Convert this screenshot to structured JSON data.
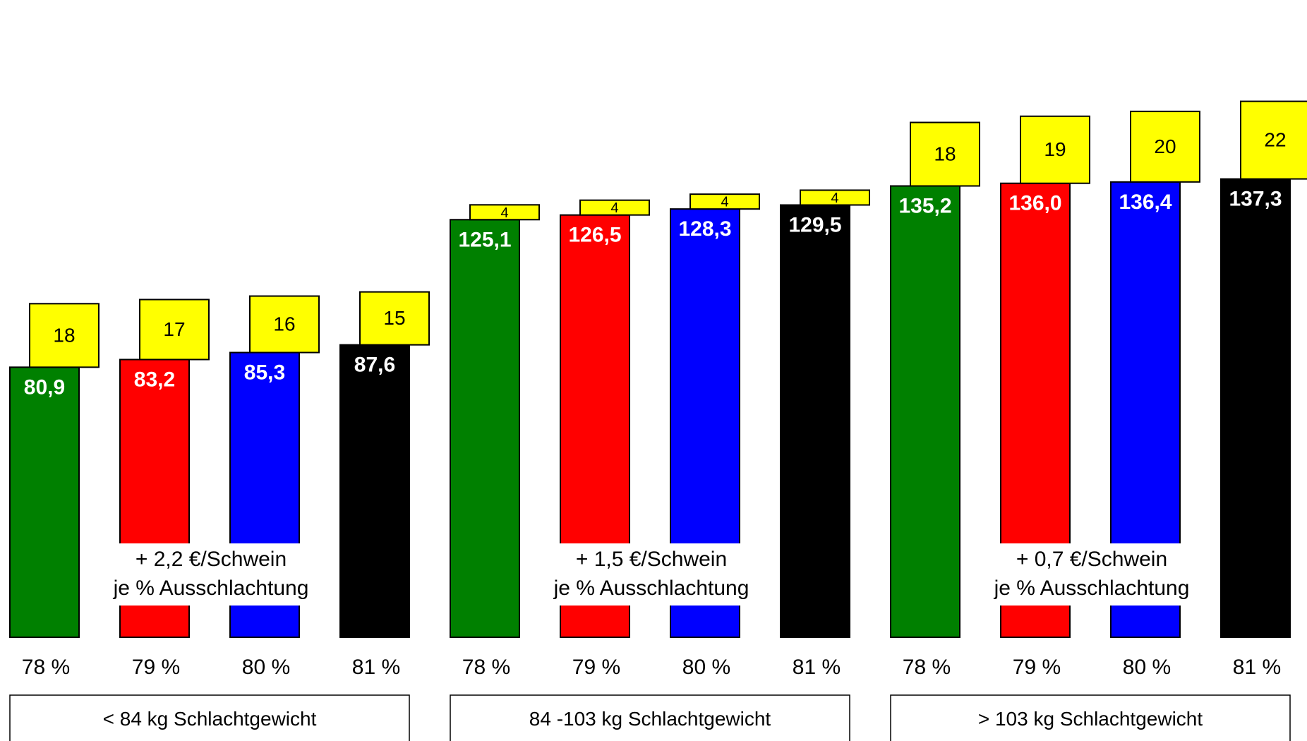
{
  "chart_data": {
    "type": "bar",
    "yellow_color": "#FFFF00",
    "group_colors": [
      "#008000",
      "#FF0000",
      "#0000FF",
      "#000000"
    ],
    "groups": [
      {
        "label": "< 84 kg Schlachtgewicht",
        "note_line1": "+ 2,2 €/Schwein",
        "note_line2": "je % Ausschlachtung",
        "bars": [
          {
            "category": "78 %",
            "value": 80.9,
            "value_label": "80,9",
            "extra": 18,
            "extra_label": "18"
          },
          {
            "category": "79 %",
            "value": 83.2,
            "value_label": "83,2",
            "extra": 17,
            "extra_label": "17"
          },
          {
            "category": "80 %",
            "value": 85.3,
            "value_label": "85,3",
            "extra": 16,
            "extra_label": "16"
          },
          {
            "category": "81 %",
            "value": 87.6,
            "value_label": "87,6",
            "extra": 15,
            "extra_label": "15"
          }
        ]
      },
      {
        "label": "84 -103 kg Schlachtgewicht",
        "note_line1": "+ 1,5 €/Schwein",
        "note_line2": "je % Ausschlachtung",
        "bars": [
          {
            "category": "78 %",
            "value": 125.1,
            "value_label": "125,1",
            "extra": 4,
            "extra_label": "4"
          },
          {
            "category": "79 %",
            "value": 126.5,
            "value_label": "126,5",
            "extra": 4,
            "extra_label": "4"
          },
          {
            "category": "80 %",
            "value": 128.3,
            "value_label": "128,3",
            "extra": 4,
            "extra_label": "4"
          },
          {
            "category": "81 %",
            "value": 129.5,
            "value_label": "129,5",
            "extra": 4,
            "extra_label": "4"
          }
        ]
      },
      {
        "label": "> 103 kg Schlachtgewicht",
        "note_line1": "+ 0,7 €/Schwein",
        "note_line2": "je % Ausschlachtung",
        "bars": [
          {
            "category": "78 %",
            "value": 135.2,
            "value_label": "135,2",
            "extra": 18,
            "extra_label": "18"
          },
          {
            "category": "79 %",
            "value": 136.0,
            "value_label": "136,0",
            "extra": 19,
            "extra_label": "19"
          },
          {
            "category": "80 %",
            "value": 136.4,
            "value_label": "136,4",
            "extra": 20,
            "extra_label": "20"
          },
          {
            "category": "81 %",
            "value": 137.3,
            "value_label": "137,3",
            "extra": 22,
            "extra_label": "22"
          }
        ]
      }
    ]
  }
}
